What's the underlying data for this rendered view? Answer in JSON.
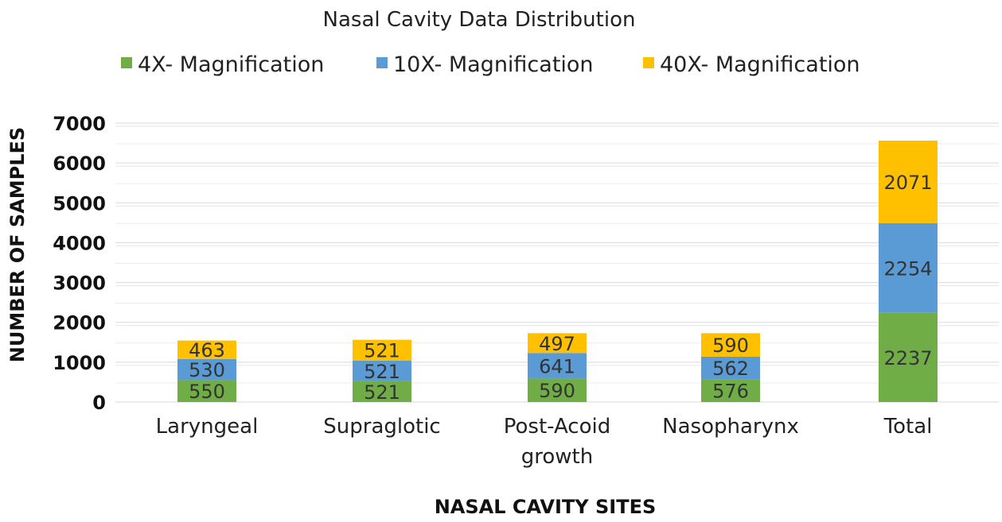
{
  "chart_data": {
    "type": "bar",
    "stacked": true,
    "title": "Nasal Cavity Data Distribution",
    "xlabel": "NASAL CAVITY  SITES",
    "ylabel": "NUMBER  OF SAMPLES",
    "ylim": [
      0,
      7000
    ],
    "yticks": [
      0,
      1000,
      2000,
      3000,
      4000,
      5000,
      6000,
      7000
    ],
    "grid": true,
    "legend_position": "top",
    "categories": [
      [
        "Laryngeal"
      ],
      [
        "Supraglotic"
      ],
      [
        "Post-Acoid",
        "growth"
      ],
      [
        "Nasopharynx"
      ],
      [
        "Total"
      ]
    ],
    "series": [
      {
        "name": "4X- Magnification",
        "color": "#70ad47",
        "values": [
          550,
          521,
          590,
          576,
          2237
        ]
      },
      {
        "name": "10X- Magnification",
        "color": "#5b9bd5",
        "values": [
          530,
          521,
          641,
          562,
          2254
        ]
      },
      {
        "name": "40X- Magnification",
        "color": "#ffc000",
        "values": [
          463,
          521,
          497,
          590,
          2071
        ]
      }
    ]
  }
}
